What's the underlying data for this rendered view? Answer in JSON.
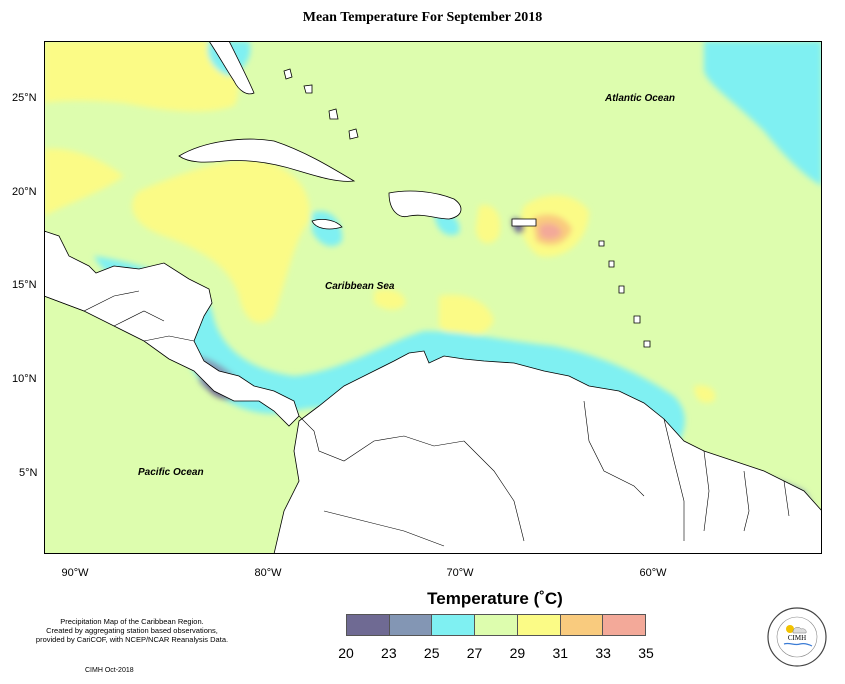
{
  "title": "Mean Temperature For September 2018",
  "map": {
    "ocean_labels": [
      {
        "name": "atlantic",
        "text": "Atlantic Ocean"
      },
      {
        "name": "caribbean",
        "text": "Caribbean Sea"
      },
      {
        "name": "pacific",
        "text": "Pacific Ocean"
      }
    ],
    "lat_labels": [
      "25°N",
      "20°N",
      "15°N",
      "10°N",
      "5°N"
    ],
    "lon_labels": [
      "90°W",
      "80°W",
      "70°W",
      "60°W"
    ]
  },
  "legend": {
    "title": "Temperature (˚C)",
    "colors": [
      "#6f6a93",
      "#8396b4",
      "#7ff0f2",
      "#ddfdae",
      "#fbfb86",
      "#f9cb7e",
      "#f3a999"
    ],
    "ticks": [
      "20",
      "23",
      "25",
      "27",
      "29",
      "31",
      "33",
      "35"
    ]
  },
  "credits": {
    "lines": [
      "Precipitation Map of the Caribbean Region.",
      "Created by aggregating station based observations,",
      "provided by CariCOF, with NCEP/NCAR Reanalysis Data."
    ],
    "date": "CIMH Oct-2018"
  },
  "logo": {
    "text": "CIMH"
  }
}
